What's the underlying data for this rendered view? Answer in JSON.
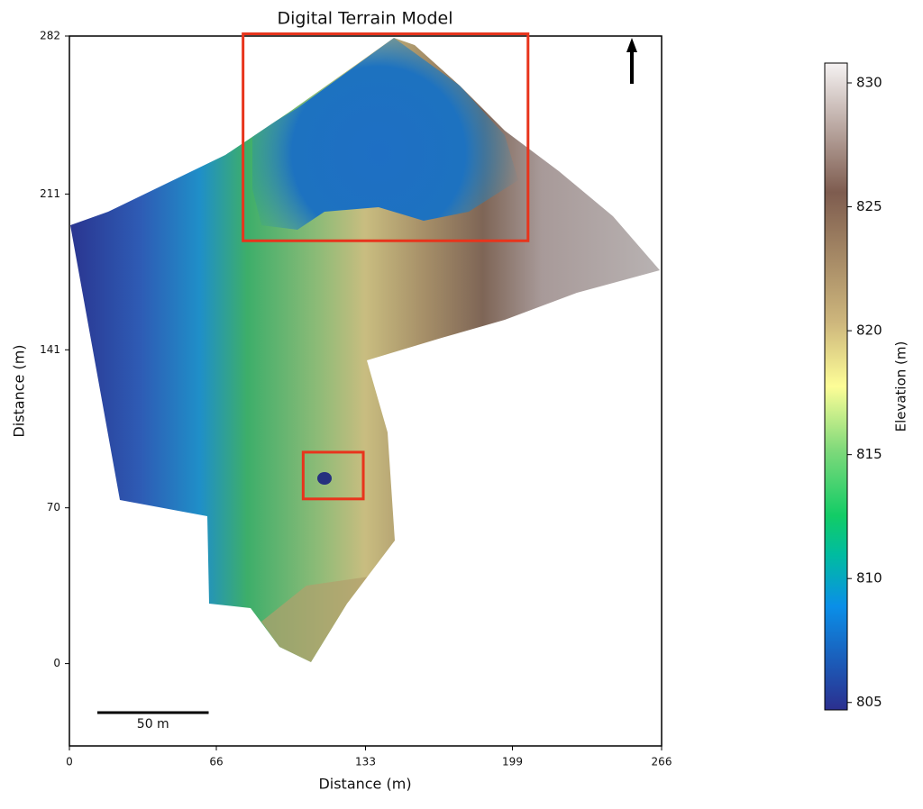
{
  "title": "Digital Terrain Model",
  "x_label": "Distance (m)",
  "y_label": "Distance (m)",
  "xlim": [
    0,
    266
  ],
  "xticks": [
    0,
    66,
    133,
    199,
    266
  ],
  "ylim": [
    -37,
    282
  ],
  "yticks": [
    0,
    70,
    141,
    211,
    282
  ],
  "colorbar": {
    "label": "Elevation (m)",
    "lim": [
      804.7,
      830.8
    ],
    "ticks": [
      805,
      810,
      815,
      820,
      825,
      830
    ]
  },
  "scale_bar": {
    "label": "50 m",
    "length": 50
  },
  "highlight_boxes": [
    {
      "xlim": [
        78,
        206
      ],
      "ylim": [
        190,
        283
      ],
      "color": "#e8341c"
    },
    {
      "xlim": [
        105,
        132
      ],
      "ylim": [
        74,
        95
      ],
      "color": "#e8341c"
    }
  ]
}
